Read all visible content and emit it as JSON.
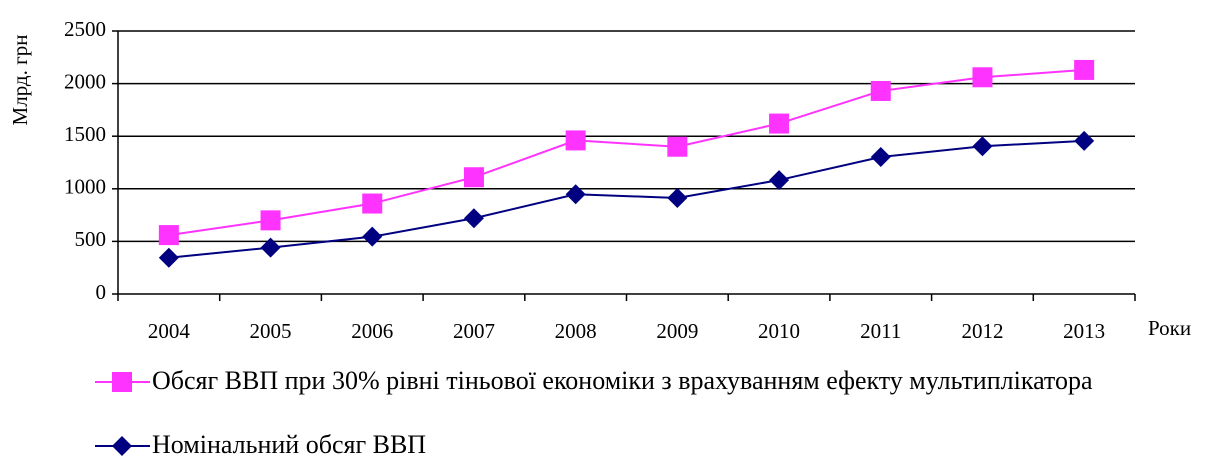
{
  "chart_data": {
    "type": "line",
    "y_label": "Млрд. грн",
    "x_label": "Роки",
    "categories": [
      "2004",
      "2005",
      "2006",
      "2007",
      "2008",
      "2009",
      "2010",
      "2011",
      "2012",
      "2013"
    ],
    "series": [
      {
        "name": "Обсяг ВВП при 30% рівні тіньової економіки з врахуванням ефекту мультиплікатора",
        "color": "#ff33ff",
        "marker": "square",
        "values": [
          560,
          700,
          860,
          1110,
          1460,
          1400,
          1620,
          1930,
          2060,
          2130
        ]
      },
      {
        "name": "Номінальний обсяг ВВП",
        "color": "#000080",
        "marker": "diamond",
        "values": [
          345,
          441,
          545,
          720,
          948,
          913,
          1083,
          1302,
          1405,
          1455
        ]
      }
    ],
    "ylim": [
      0,
      2500
    ],
    "yticks": [
      0,
      500,
      1000,
      1500,
      2000,
      2500
    ],
    "grid": true
  }
}
